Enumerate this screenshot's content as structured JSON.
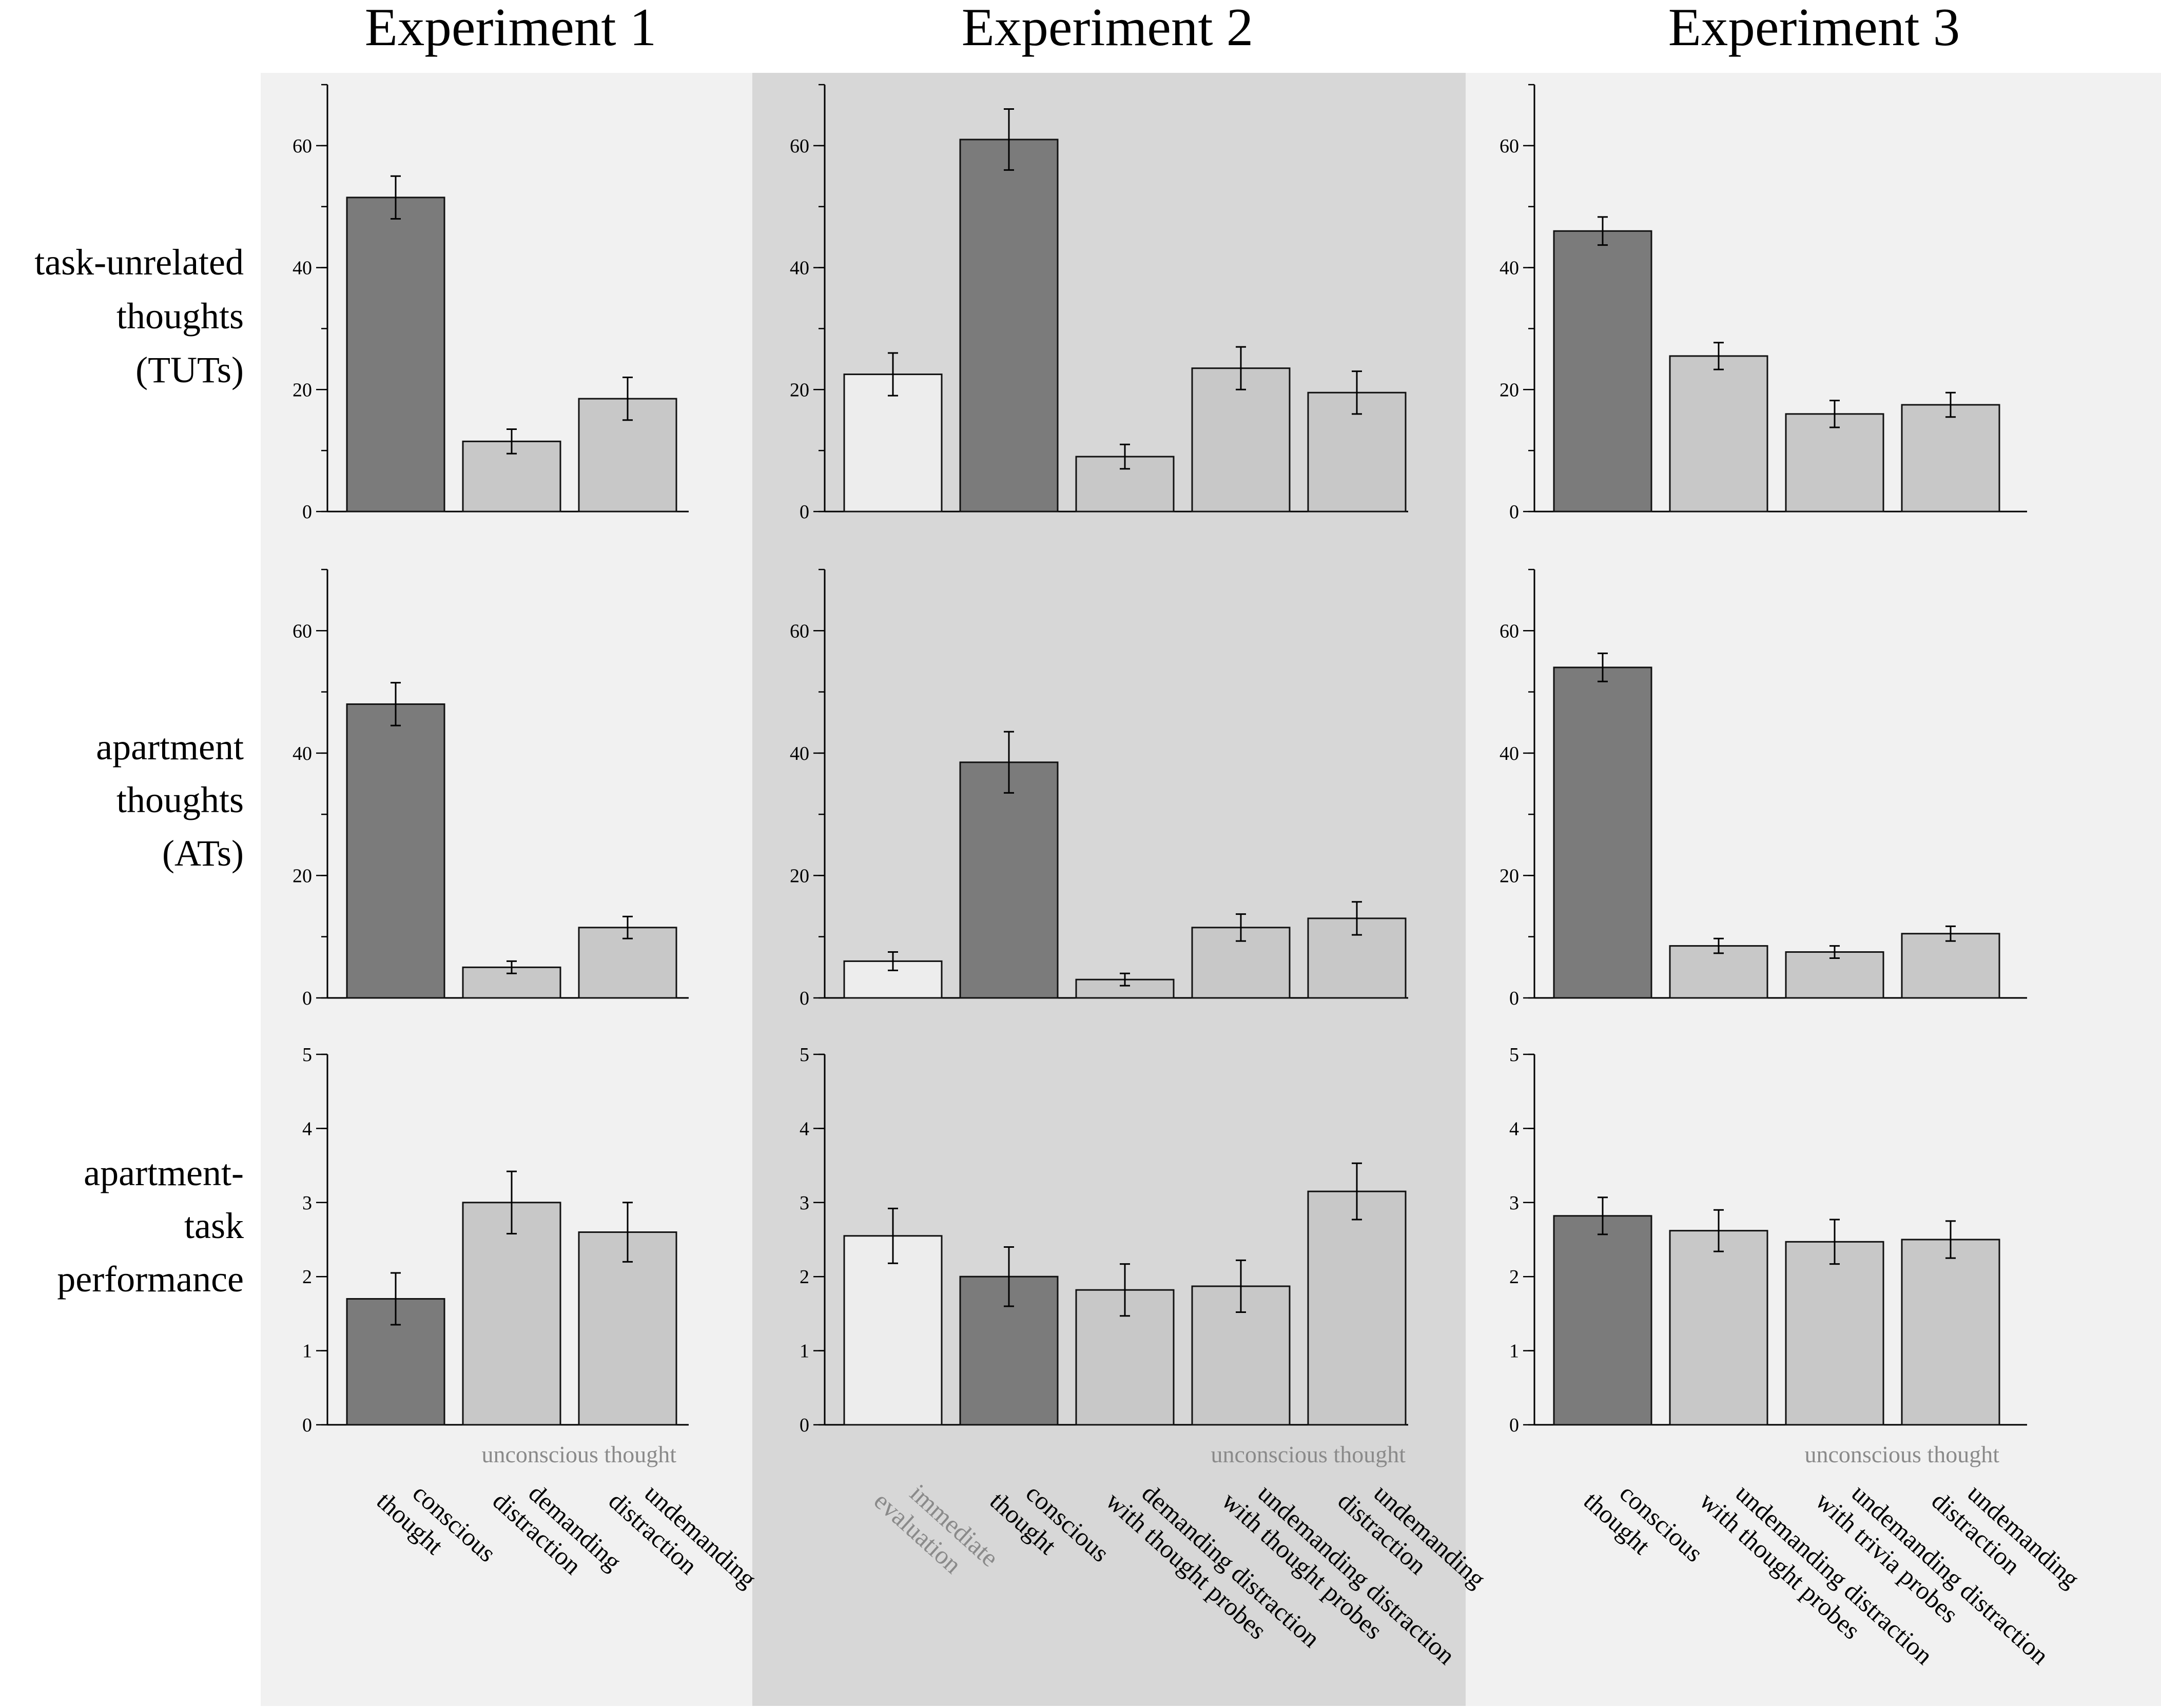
{
  "colors": {
    "panel_light": "#f1f1f1",
    "panel_mid": "#d7d7d7",
    "bar_dark": "#7b7b7b",
    "bar_light": "#c8c8c8",
    "bar_white": "#ededed",
    "muted_text": "#8a8a8a"
  },
  "chart_data": {
    "type": "bar",
    "experiments": [
      "Experiment 1",
      "Experiment 2",
      "Experiment 3"
    ],
    "rows": [
      {
        "label_lines": [
          "task-unrelated",
          "thoughts",
          "(TUTs)"
        ],
        "ylim": [
          0,
          70
        ],
        "ticks": [
          0,
          20,
          40,
          60
        ],
        "minor_step": 10
      },
      {
        "label_lines": [
          "apartment",
          "thoughts",
          "(ATs)"
        ],
        "ylim": [
          0,
          70
        ],
        "ticks": [
          0,
          20,
          40,
          60
        ],
        "minor_step": 10
      },
      {
        "label_lines": [
          "apartment-",
          "task",
          "performance"
        ],
        "ylim": [
          0,
          5
        ],
        "ticks": [
          0,
          1,
          2,
          3,
          4,
          5
        ],
        "minor_step": 1
      }
    ],
    "columns": [
      {
        "categories": [
          {
            "lines": [
              "conscious",
              "thought"
            ],
            "style": "dark"
          },
          {
            "lines": [
              "demanding",
              "distraction"
            ],
            "style": "light"
          },
          {
            "lines": [
              "undemanding",
              "distraction"
            ],
            "style": "light"
          }
        ],
        "group_label": "unconscious thought",
        "series": [
          {
            "name": "task-unrelated thoughts (TUTs)",
            "values": [
              51.5,
              11.5,
              18.5
            ],
            "err": [
              3.5,
              2,
              3.5
            ]
          },
          {
            "name": "apartment thoughts (ATs)",
            "values": [
              48,
              5,
              11.5
            ],
            "err": [
              3.5,
              1,
              1.8
            ]
          },
          {
            "name": "apartment-task performance",
            "values": [
              1.7,
              3.0,
              2.6
            ],
            "err": [
              0.35,
              0.42,
              0.4
            ]
          }
        ]
      },
      {
        "categories": [
          {
            "lines": [
              "immediate",
              "evaluation"
            ],
            "style": "white",
            "muted": true
          },
          {
            "lines": [
              "conscious",
              "thought"
            ],
            "style": "dark"
          },
          {
            "lines": [
              "demanding distraction",
              "with thought probes"
            ],
            "style": "light"
          },
          {
            "lines": [
              "undemanding distraction",
              "with thought probes"
            ],
            "style": "light"
          },
          {
            "lines": [
              "undemanding",
              "distraction"
            ],
            "style": "light"
          }
        ],
        "group_label": "unconscious thought",
        "series": [
          {
            "name": "task-unrelated thoughts (TUTs)",
            "values": [
              22.5,
              61,
              9,
              23.5,
              19.5
            ],
            "err": [
              3.5,
              5,
              2,
              3.5,
              3.5
            ]
          },
          {
            "name": "apartment thoughts (ATs)",
            "values": [
              6,
              38.5,
              3,
              11.5,
              13
            ],
            "err": [
              1.5,
              5,
              1,
              2.2,
              2.7
            ]
          },
          {
            "name": "apartment-task performance",
            "values": [
              2.55,
              2.0,
              1.82,
              1.87,
              3.15
            ],
            "err": [
              0.37,
              0.4,
              0.35,
              0.35,
              0.38
            ]
          }
        ]
      },
      {
        "categories": [
          {
            "lines": [
              "conscious",
              "thought"
            ],
            "style": "dark"
          },
          {
            "lines": [
              "undemanding distraction",
              "with thought probes"
            ],
            "style": "light"
          },
          {
            "lines": [
              "undemanding distraction",
              "with trivia probes"
            ],
            "style": "light"
          },
          {
            "lines": [
              "undemanding",
              "distraction"
            ],
            "style": "light"
          }
        ],
        "group_label": "unconscious thought",
        "series": [
          {
            "name": "task-unrelated thoughts (TUTs)",
            "values": [
              46,
              25.5,
              16,
              17.5
            ],
            "err": [
              2.3,
              2.2,
              2.2,
              2
            ]
          },
          {
            "name": "apartment thoughts (ATs)",
            "values": [
              54,
              8.5,
              7.5,
              10.5
            ],
            "err": [
              2.3,
              1.2,
              1,
              1.2
            ]
          },
          {
            "name": "apartment-task performance",
            "values": [
              2.82,
              2.62,
              2.47,
              2.5
            ],
            "err": [
              0.25,
              0.28,
              0.3,
              0.25
            ]
          }
        ]
      }
    ]
  }
}
